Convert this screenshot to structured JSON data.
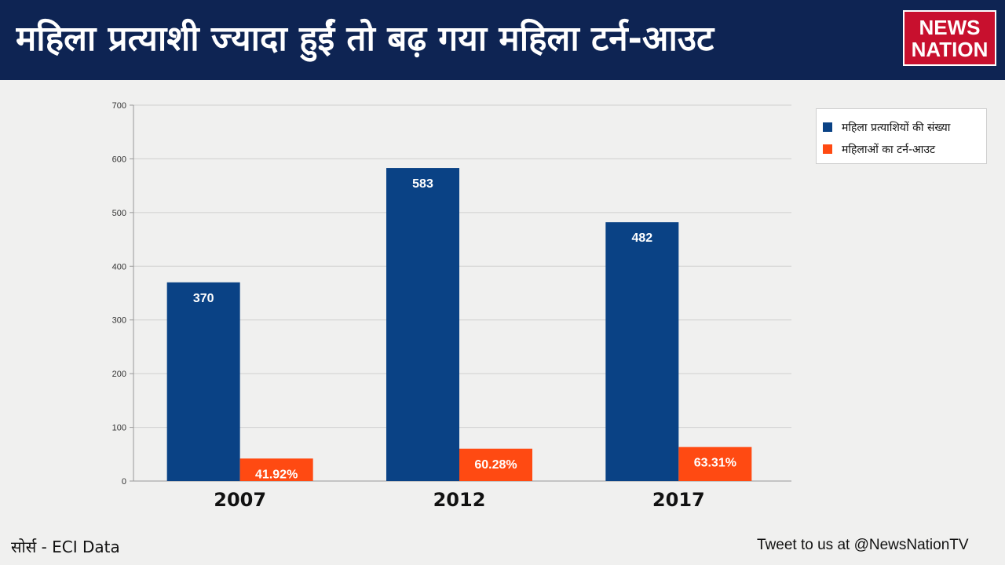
{
  "header": {
    "title": "महिला प्रत्याशी ज्यादा हुईं तो बढ़ गया महिला टर्न-आउट",
    "logo_line1": "NEWS",
    "logo_line2": "NATION"
  },
  "chart_data": {
    "type": "bar",
    "categories": [
      "2007",
      "2012",
      "2017"
    ],
    "series": [
      {
        "name": "महिला प्रत्याशियों की संख्या",
        "values": [
          370,
          583,
          482
        ],
        "labels": [
          "370",
          "583",
          "482"
        ],
        "color": "#0a4285"
      },
      {
        "name": "महिलाओं का टर्न-आउट",
        "values": [
          41.92,
          60.28,
          63.31
        ],
        "labels": [
          "41.92%",
          "60.28%",
          "63.31%"
        ],
        "color": "#ff4a12"
      }
    ],
    "ylim": [
      0,
      700
    ],
    "yticks": [
      "0",
      "100",
      "200",
      "300",
      "400",
      "500",
      "600",
      "700"
    ],
    "grid": true,
    "legend_position": "top-right"
  },
  "footer": {
    "source": "सोर्स - ECI Data",
    "tweet": "Tweet to us at @NewsNationTV"
  }
}
